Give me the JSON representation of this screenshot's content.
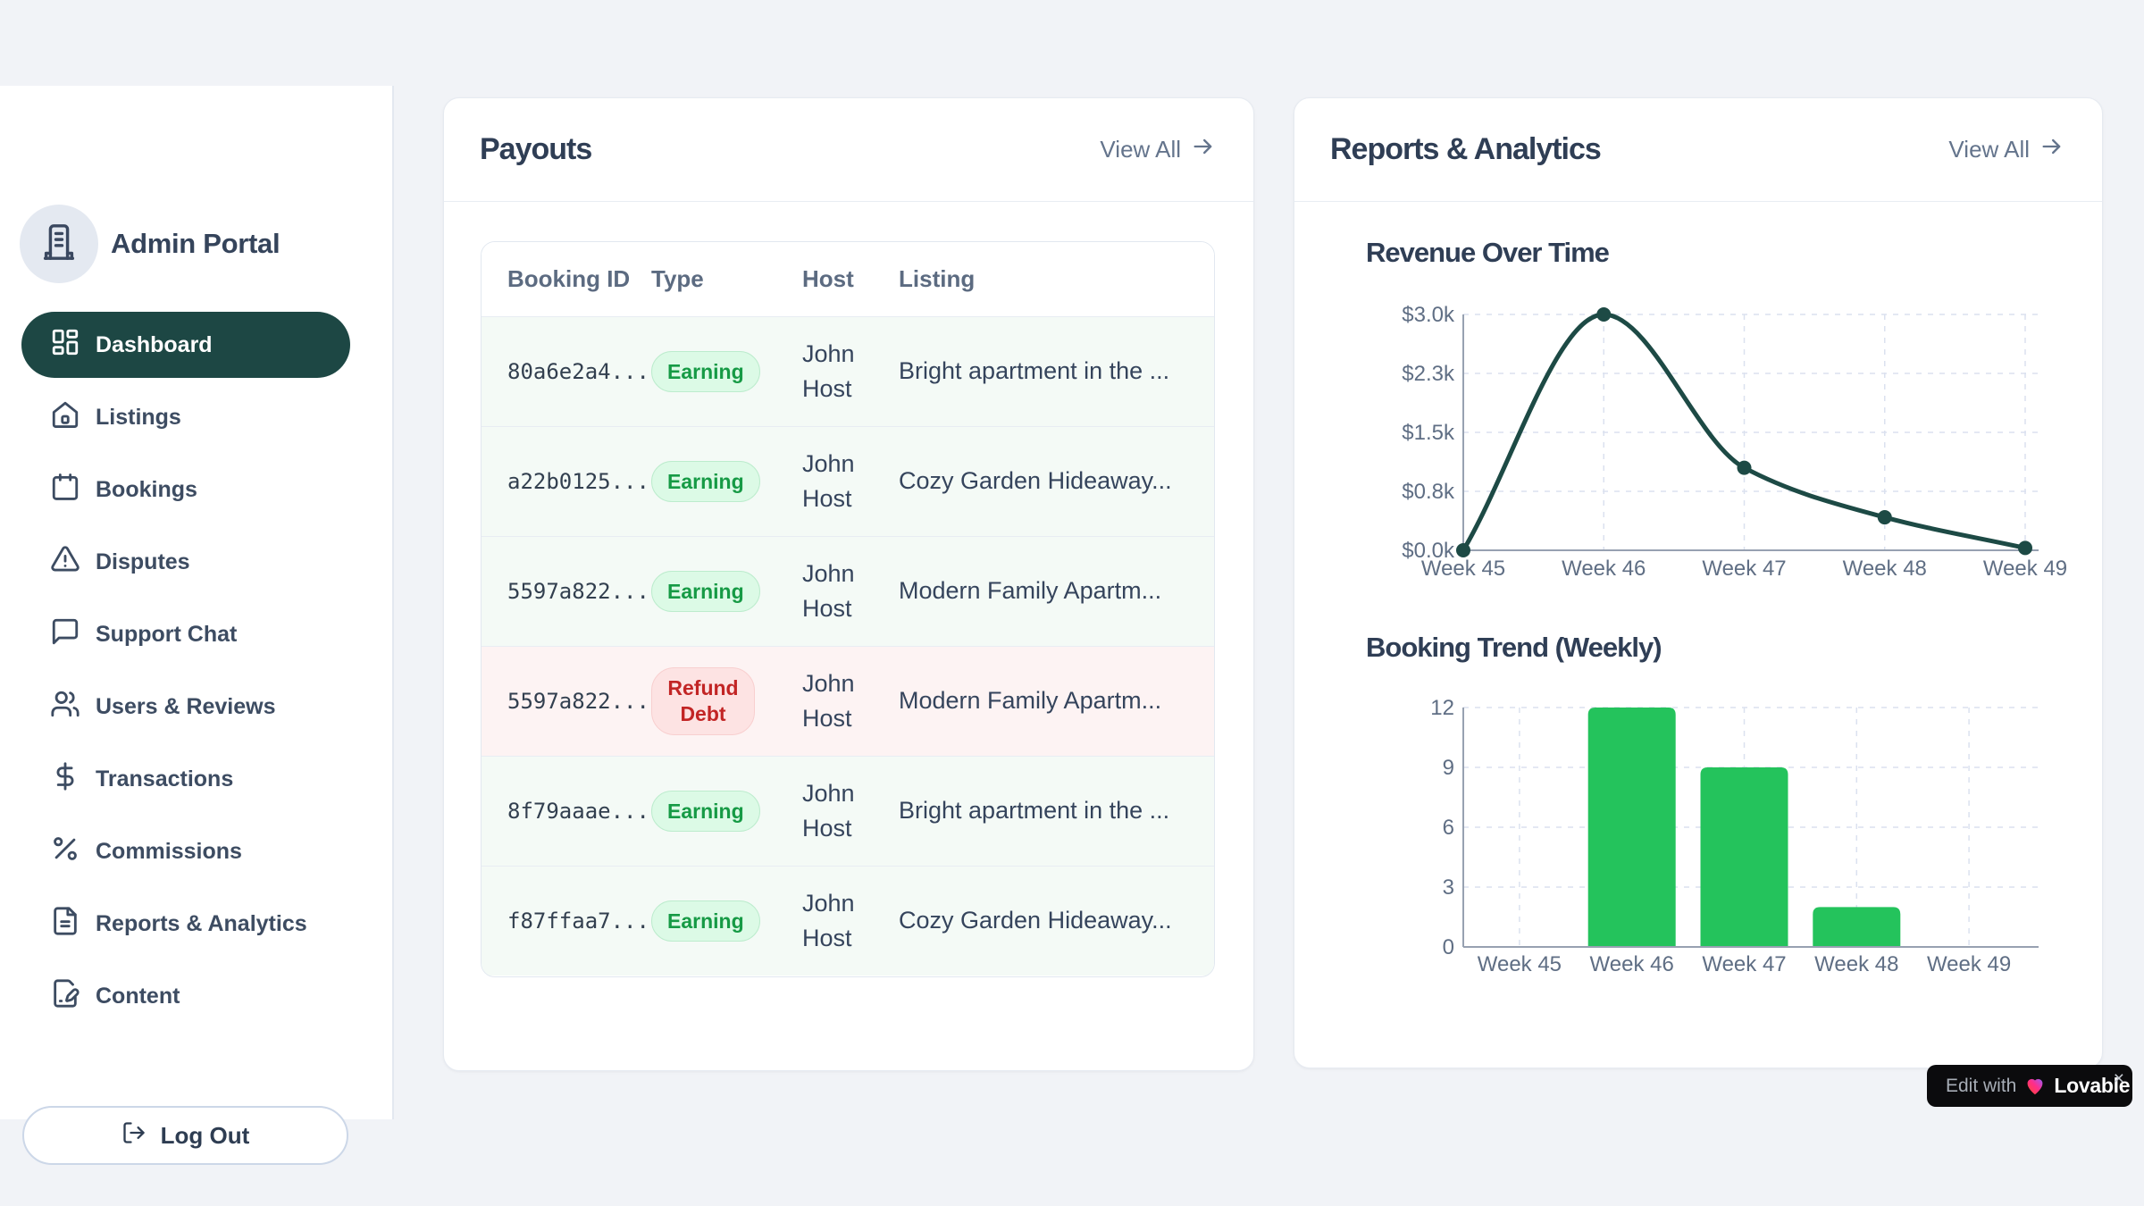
{
  "app": {
    "title": "Admin Portal"
  },
  "sidebar": {
    "items": [
      {
        "label": "Dashboard",
        "icon": "layout-dashboard-icon",
        "active": true
      },
      {
        "label": "Listings",
        "icon": "home-icon",
        "active": false
      },
      {
        "label": "Bookings",
        "icon": "calendar-icon",
        "active": false
      },
      {
        "label": "Disputes",
        "icon": "alert-triangle-icon",
        "active": false
      },
      {
        "label": "Support Chat",
        "icon": "message-square-icon",
        "active": false
      },
      {
        "label": "Users & Reviews",
        "icon": "users-icon",
        "active": false
      },
      {
        "label": "Transactions",
        "icon": "dollar-sign-icon",
        "active": false
      },
      {
        "label": "Commissions",
        "icon": "percent-icon",
        "active": false
      },
      {
        "label": "Reports & Analytics",
        "icon": "file-text-icon",
        "active": false
      },
      {
        "label": "Content",
        "icon": "file-pen-icon",
        "active": false
      }
    ],
    "logout_label": "Log Out"
  },
  "payouts": {
    "title": "Payouts",
    "view_all_label": "View All",
    "table": {
      "columns": [
        "Booking ID",
        "Type",
        "Host",
        "Listing"
      ],
      "rows": [
        {
          "booking_id": "80a6e2a4...",
          "type": "Earning",
          "type_variant": "earning",
          "host": "John Host",
          "listing": "Bright apartment in the ..."
        },
        {
          "booking_id": "a22b0125...",
          "type": "Earning",
          "type_variant": "earning",
          "host": "John Host",
          "listing": "Cozy Garden Hideaway..."
        },
        {
          "booking_id": "5597a822...",
          "type": "Earning",
          "type_variant": "earning",
          "host": "John Host",
          "listing": "Modern Family Apartm..."
        },
        {
          "booking_id": "5597a822...",
          "type": "Refund Debt",
          "type_variant": "refund",
          "host": "John Host",
          "listing": "Modern Family Apartm..."
        },
        {
          "booking_id": "8f79aaae...",
          "type": "Earning",
          "type_variant": "earning",
          "host": "John Host",
          "listing": "Bright apartment in the ..."
        },
        {
          "booking_id": "f87ffaa7...",
          "type": "Earning",
          "type_variant": "earning",
          "host": "John Host",
          "listing": "Cozy Garden Hideaway..."
        }
      ]
    }
  },
  "reports": {
    "title": "Reports & Analytics",
    "view_all_label": "View All"
  },
  "chart_data": [
    {
      "type": "line",
      "title": "Revenue Over Time",
      "categories": [
        "Week 45",
        "Week 46",
        "Week 47",
        "Week 48",
        "Week 49"
      ],
      "values": [
        0,
        3000,
        1050,
        420,
        30
      ],
      "ytick_values": [
        0,
        750,
        1500,
        2250,
        3000
      ],
      "ytick_labels": [
        "$0.0k",
        "$0.8k",
        "$1.5k",
        "$2.3k",
        "$3.0k"
      ],
      "ylim": [
        0,
        3000
      ],
      "xlabel": "",
      "ylabel": "",
      "grid": "dashed",
      "legend": "none",
      "line_color": "#1d4a45"
    },
    {
      "type": "bar",
      "title": "Booking Trend (Weekly)",
      "categories": [
        "Week 45",
        "Week 46",
        "Week 47",
        "Week 48",
        "Week 49"
      ],
      "values": [
        0,
        12,
        9,
        2,
        0
      ],
      "ytick_values": [
        0,
        3,
        6,
        9,
        12
      ],
      "ytick_labels": [
        "0",
        "3",
        "6",
        "9",
        "12"
      ],
      "ylim": [
        0,
        12
      ],
      "xlabel": "",
      "ylabel": "",
      "grid": "dashed",
      "legend": "none",
      "bar_color": "#24c35c"
    }
  ],
  "lovable_badge": {
    "prefix": "Edit with",
    "brand": "Lovable",
    "close": "×"
  },
  "colors": {
    "accent_dark_teal": "#1d4744",
    "chart_line": "#1d4a45",
    "chart_bar_green": "#24c35c",
    "earning_badge_bg": "#dcfae6",
    "earning_badge_text": "#169a45",
    "refund_badge_bg": "#fde3e3",
    "refund_badge_text": "#c22525",
    "earning_row_bg": "#f4faf6",
    "refund_row_bg": "#fdf3f3",
    "page_bg": "#f1f3f7",
    "grid_dash": "#dbe1ef",
    "axis_line": "#97a1b1",
    "tick_text": "#5f6e84"
  }
}
